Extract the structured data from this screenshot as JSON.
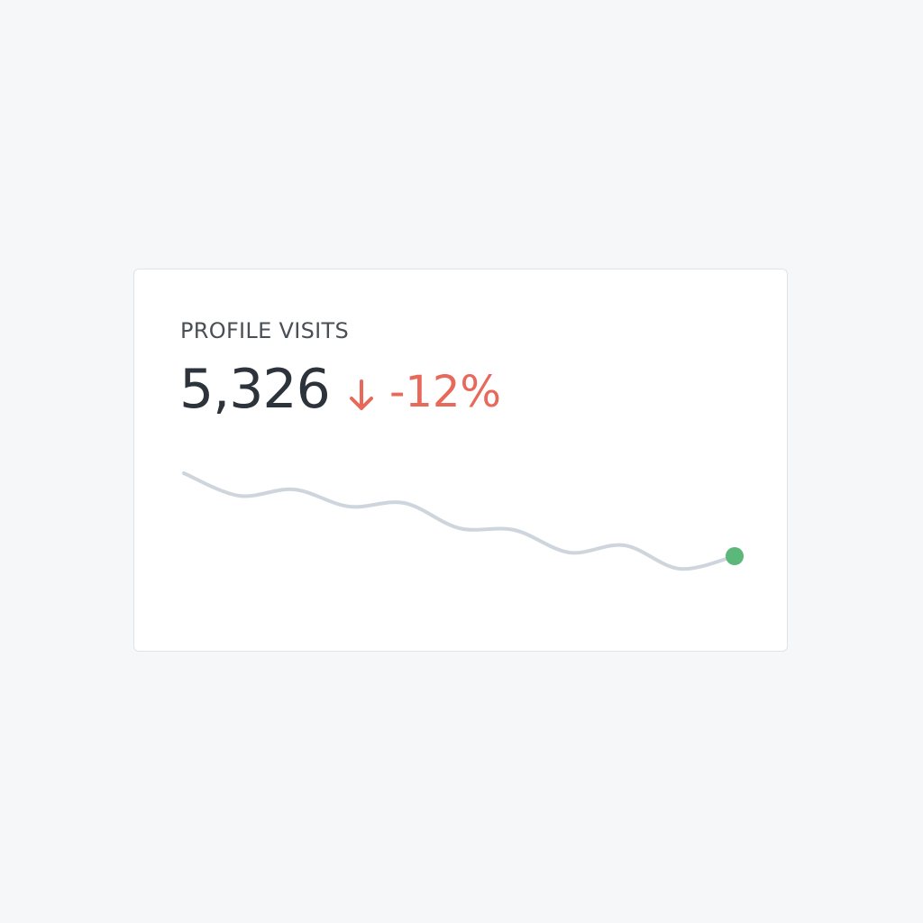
{
  "card": {
    "title": "PROFILE VISITS",
    "value": "5,326",
    "change": "-12%",
    "change_color": "#e8685a",
    "sparkline": {
      "type": "line",
      "values": [
        176,
        151,
        158,
        139,
        143,
        115,
        113,
        88,
        96,
        70,
        84
      ],
      "color": "#cfd5dc",
      "end_color": "#5cb87a"
    }
  }
}
